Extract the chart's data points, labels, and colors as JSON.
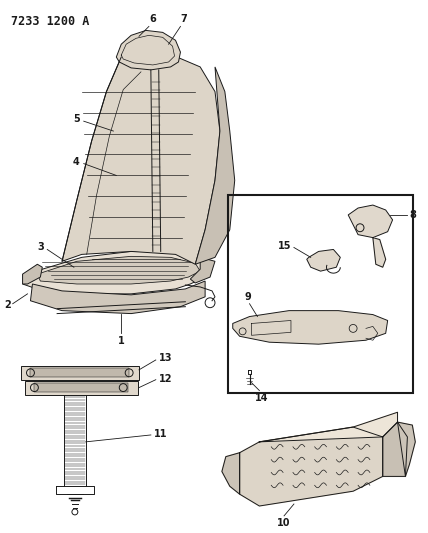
{
  "title": "7233 1200 A",
  "bg_color": "#ffffff",
  "line_color": "#1a1a1a",
  "title_fontsize": 8.5,
  "label_fontsize": 7,
  "fig_width": 4.28,
  "fig_height": 5.33,
  "dpi": 100,
  "seat_color": "#d8d0c4",
  "seat_dark": "#b0a898",
  "seat_shadow": "#c4bcb0"
}
